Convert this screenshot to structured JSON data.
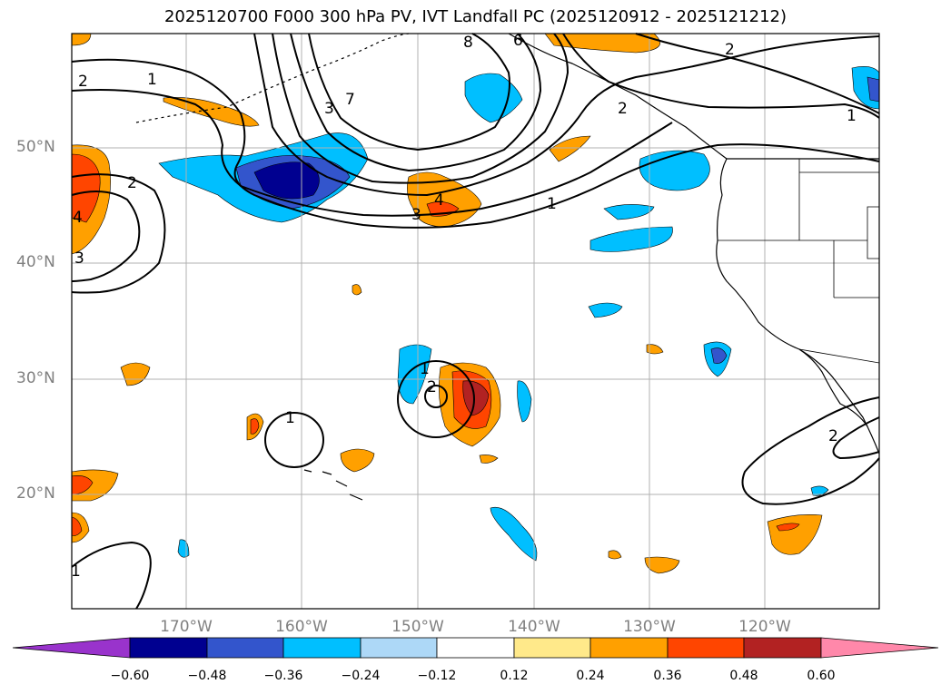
{
  "title": "2025120700 F000 300 hPa PV, IVT Landfall PC (2025120912 - 2025121212)",
  "latitude_labels": [
    {
      "label": "50°N",
      "value": 50
    },
    {
      "label": "40°N",
      "value": 40
    },
    {
      "label": "30°N",
      "value": 30
    },
    {
      "label": "20°N",
      "value": 20
    }
  ],
  "longitude_labels": [
    {
      "label": "170°W",
      "value": -170
    },
    {
      "label": "160°W",
      "value": -160
    },
    {
      "label": "150°W",
      "value": -150
    },
    {
      "label": "140°W",
      "value": -140
    },
    {
      "label": "130°W",
      "value": -130
    },
    {
      "label": "120°W",
      "value": -120
    }
  ],
  "map_extent": {
    "lon_min": -180,
    "lon_max": -110,
    "lat_min": 10,
    "lat_max": 60
  },
  "contour_labels": [
    "2",
    "1",
    "8",
    "6",
    "2",
    "3",
    "7",
    "2",
    "1",
    "2",
    "4",
    "3",
    "4",
    "3",
    "1",
    "1",
    "2",
    "1",
    "2",
    "1"
  ],
  "colorbar": {
    "ticks": [
      "−0.60",
      "−0.48",
      "−0.36",
      "−0.24",
      "−0.12",
      "0.12",
      "0.24",
      "0.36",
      "0.48",
      "0.60"
    ],
    "colors": [
      "#9933cc",
      "#000090",
      "#3355cc",
      "#00bfff",
      "#add8f7",
      "#ffffff",
      "#ffe98a",
      "#ffa000",
      "#ff4500",
      "#b22222",
      "#ff88aa"
    ]
  }
}
